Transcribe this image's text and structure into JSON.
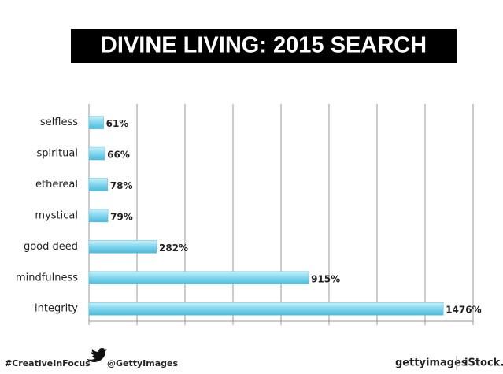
{
  "chart_data": {
    "type": "barh",
    "title": "DIVINE LIVING: 2015 SEARCH",
    "categories": [
      "selfless",
      "spiritual",
      "ethereal",
      "mystical",
      "good deed",
      "mindfulness",
      "integrity"
    ],
    "values": [
      61,
      66,
      78,
      79,
      282,
      915,
      1476
    ],
    "value_labels": [
      "61%",
      "66%",
      "78%",
      "79%",
      "282%",
      "915%",
      "1476%"
    ],
    "color": "#7fd6ee",
    "xlim": [
      0,
      1600
    ],
    "xticks": [
      0,
      200,
      400,
      600,
      800,
      1000,
      1200,
      1400,
      1600
    ],
    "grid": true
  },
  "footer": {
    "hashtag": "#CreativeInFocus",
    "handle": "@GettyImages",
    "brand": "gettyimages",
    "brand2": "iStock."
  }
}
